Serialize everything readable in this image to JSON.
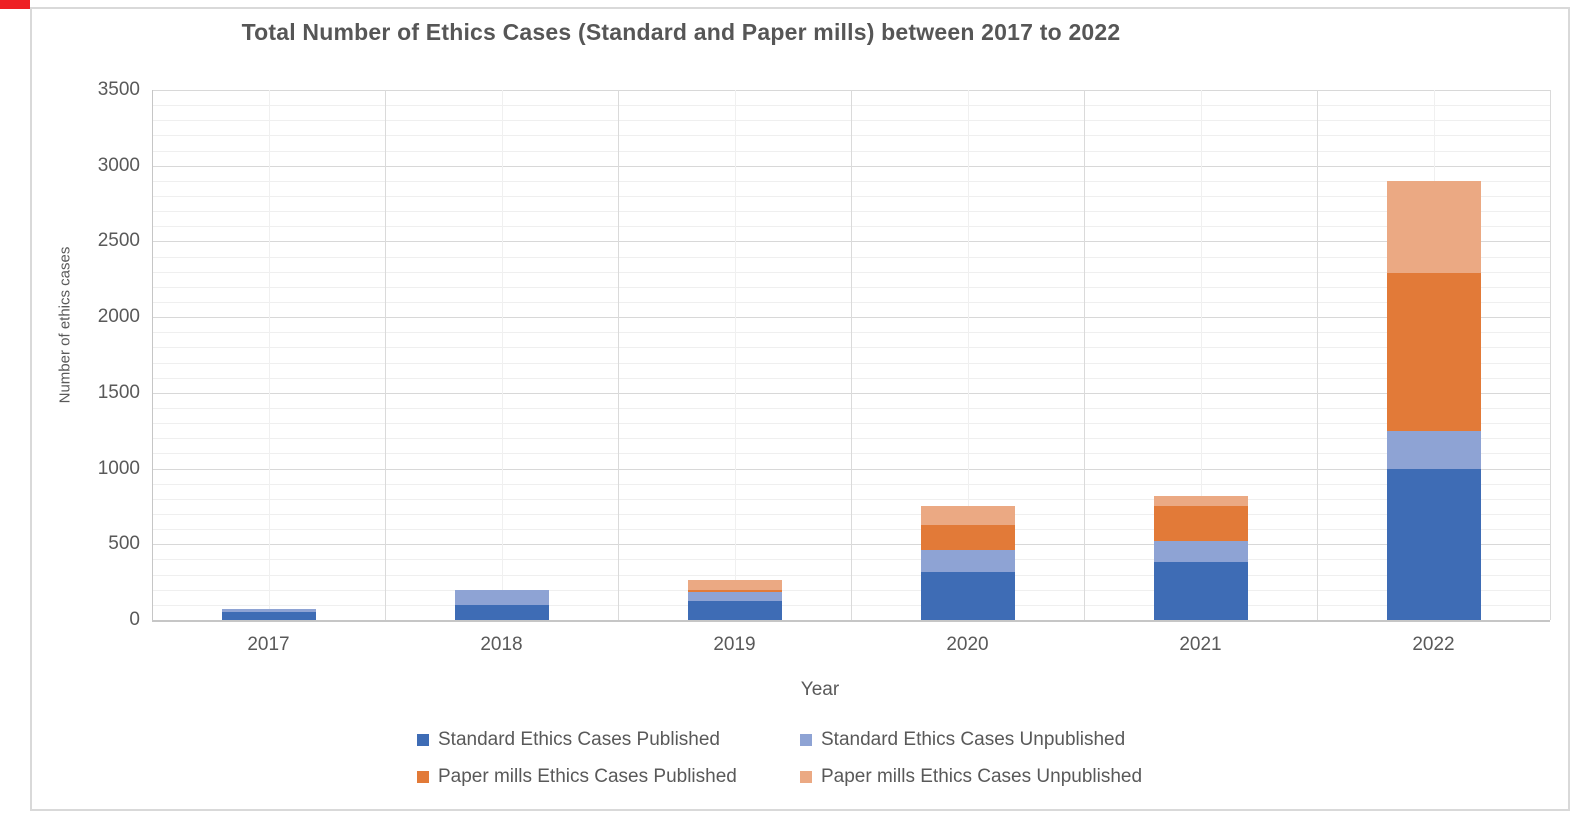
{
  "accents": {
    "top_left_marker": "#ee2024",
    "frame_border": "#d9d9d9",
    "text_color": "#595959"
  },
  "chart_data": {
    "type": "bar",
    "stacked": true,
    "title": "Total Number of Ethics Cases (Standard and Paper mills) between 2017 to 2022",
    "xlabel": "Year",
    "ylabel": "Number of ethics cases",
    "ylim": [
      0,
      3500
    ],
    "ytick_step": 500,
    "ytick_labels": [
      "0",
      "500",
      "1000",
      "1500",
      "2000",
      "2500",
      "3000",
      "3500"
    ],
    "y_minor_step": 100,
    "grid": true,
    "grid_colors": {
      "minor": "#efefef",
      "major": "#d8d8d8",
      "axis": "#c6c6c6"
    },
    "legend_position": "bottom",
    "categories": [
      "2017",
      "2018",
      "2019",
      "2020",
      "2021",
      "2022"
    ],
    "series": [
      {
        "name": "Standard Ethics Cases Published",
        "color": "#3e6cb5",
        "values": [
          50,
          100,
          125,
          320,
          380,
          1000
        ]
      },
      {
        "name": "Standard Ethics Cases Unpublished",
        "color": "#8ea3d4",
        "values": [
          20,
          95,
          60,
          145,
          140,
          250
        ]
      },
      {
        "name": "Paper mills Ethics Cases Published",
        "color": "#e27a38",
        "values": [
          0,
          0,
          15,
          160,
          230,
          1040
        ]
      },
      {
        "name": "Paper mills Ethics Cases Unpublished",
        "color": "#eba983",
        "values": [
          0,
          0,
          65,
          130,
          70,
          610
        ]
      }
    ],
    "totals": [
      70,
      195,
      265,
      755,
      820,
      2900
    ]
  }
}
